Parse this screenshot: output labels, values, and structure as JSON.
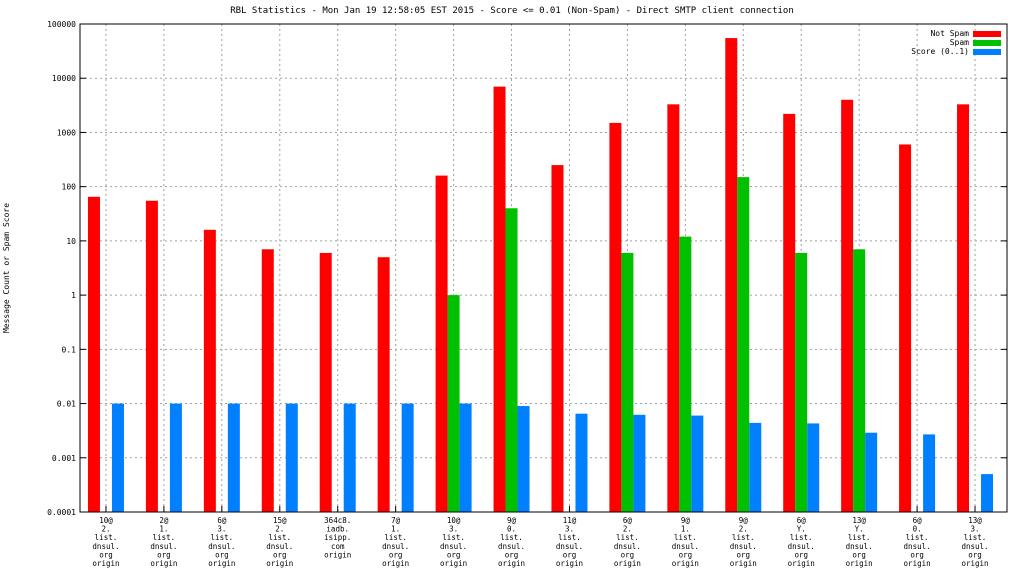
{
  "chart_data": {
    "type": "bar",
    "title": "RBL Statistics - Mon Jan 19 12:58:05 EST 2015 - Score <= 0.01 (Non-Spam) - Direct SMTP client connection",
    "ylabel": "Message Count or Spam Score",
    "xlabel": "",
    "yscale": "log",
    "ylim": [
      0.0001,
      100000
    ],
    "y_ticks": [
      "0.0001",
      "0.001",
      "0.01",
      "0.1",
      "1",
      "10",
      "100",
      "1000",
      "10000",
      "100000"
    ],
    "grid": true,
    "legend_position": "top-right",
    "categories": [
      [
        "10@",
        "2.",
        "list.",
        "dnsul.",
        "org",
        "origin"
      ],
      [
        "2@",
        "1.",
        "list.",
        "dnsul.",
        "org",
        "origin"
      ],
      [
        "6@",
        "3.",
        "list.",
        "dnsul.",
        "org",
        "origin"
      ],
      [
        "15@",
        "2.",
        "list.",
        "dnsul.",
        "org",
        "origin"
      ],
      [
        "364c8.",
        "iadb.",
        "isipp.",
        "com",
        "origin"
      ],
      [
        "7@",
        "1.",
        "list.",
        "dnsul.",
        "org",
        "origin"
      ],
      [
        "10@",
        "3.",
        "list.",
        "dnsul.",
        "org",
        "origin"
      ],
      [
        "9@",
        "0.",
        "list.",
        "dnsul.",
        "org",
        "origin"
      ],
      [
        "11@",
        "3.",
        "list.",
        "dnsul.",
        "org",
        "origin"
      ],
      [
        "6@",
        "2.",
        "list.",
        "dnsul.",
        "org",
        "origin"
      ],
      [
        "9@",
        "1.",
        "list.",
        "dnsul.",
        "org",
        "origin"
      ],
      [
        "9@",
        "2.",
        "list.",
        "dnsul.",
        "org",
        "origin"
      ],
      [
        "6@",
        "Y.",
        "list.",
        "dnsul.",
        "org",
        "origin"
      ],
      [
        "13@",
        "Y.",
        "list.",
        "dnsul.",
        "org",
        "origin"
      ],
      [
        "6@",
        "0.",
        "list.",
        "dnsul.",
        "org",
        "origin"
      ],
      [
        "13@",
        "3.",
        "list.",
        "dnsul.",
        "org",
        "origin"
      ]
    ],
    "series": [
      {
        "name": "Not Spam",
        "color": "#ff0000",
        "values": [
          65,
          55,
          16,
          7,
          6,
          5,
          160,
          7000,
          250,
          1500,
          3300,
          55000,
          2200,
          4000,
          600,
          3300
        ]
      },
      {
        "name": "Spam",
        "color": "#00c000",
        "values": [
          null,
          null,
          null,
          null,
          null,
          null,
          1,
          40,
          null,
          6,
          12,
          150,
          6,
          7,
          null,
          null
        ]
      },
      {
        "name": "Score (0..1)",
        "color": "#0080ff",
        "values": [
          0.01,
          0.01,
          0.01,
          0.01,
          0.01,
          0.01,
          0.01,
          0.009,
          0.0065,
          0.0062,
          0.006,
          0.0044,
          0.0043,
          0.0029,
          0.0027,
          0.0005
        ]
      }
    ]
  }
}
